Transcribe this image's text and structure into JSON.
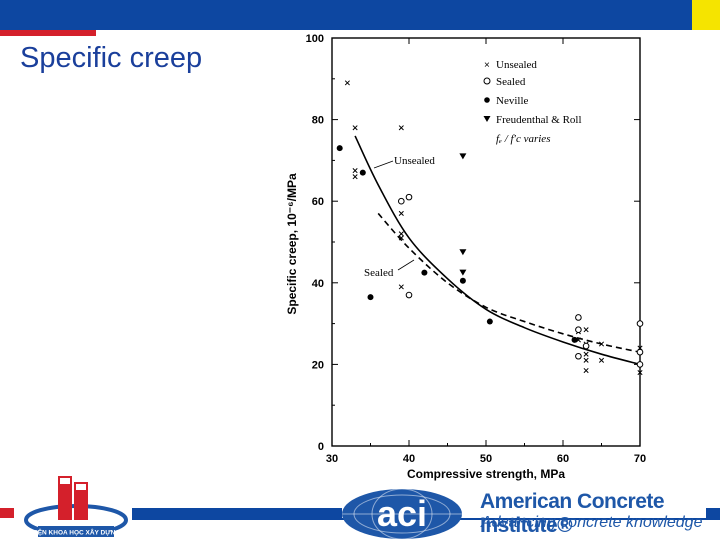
{
  "slide": {
    "title": "Specific creep"
  },
  "colors": {
    "primary_blue": "#0d47a1",
    "accent_red": "#d4202b",
    "accent_yellow": "#f5e400",
    "aci_blue": "#1e57a8"
  },
  "chart_data": {
    "type": "scatter",
    "title": "",
    "xlabel": "Compressive strength, MPa",
    "ylabel": "Specific creep, 10⁻⁶/MPa",
    "xlim": [
      30,
      70
    ],
    "ylim": [
      0,
      100
    ],
    "xticks": [
      "30",
      "40",
      "50",
      "60",
      "70"
    ],
    "yticks": [
      "0",
      "20",
      "40",
      "60",
      "80",
      "100"
    ],
    "legend": {
      "placement": "top-right",
      "entries": [
        "Unsealed",
        "Sealed",
        "Neville",
        "Freudenthal & Roll"
      ],
      "note": "fₑ / f′c varies"
    },
    "series": [
      {
        "name": "Unsealed",
        "marker": "x",
        "points": [
          [
            32,
            89
          ],
          [
            33,
            78
          ],
          [
            33,
            67.5
          ],
          [
            33,
            66
          ],
          [
            39,
            78
          ],
          [
            39,
            57
          ],
          [
            39,
            52
          ],
          [
            39,
            51
          ],
          [
            39,
            39
          ],
          [
            62,
            28
          ],
          [
            62,
            26
          ],
          [
            63,
            28.5
          ],
          [
            63,
            25
          ],
          [
            63,
            22.5
          ],
          [
            63,
            21
          ],
          [
            63,
            18.5
          ],
          [
            65,
            25
          ],
          [
            65,
            21
          ],
          [
            70,
            24
          ],
          [
            70,
            18
          ]
        ]
      },
      {
        "name": "Sealed",
        "marker": "o",
        "points": [
          [
            39,
            60
          ],
          [
            40,
            61
          ],
          [
            40,
            37
          ],
          [
            62,
            31.5
          ],
          [
            62,
            28.5
          ],
          [
            62,
            22
          ],
          [
            63,
            24.5
          ],
          [
            70,
            30
          ],
          [
            70,
            23
          ],
          [
            70,
            20
          ]
        ]
      },
      {
        "name": "Neville",
        "marker": "dot",
        "points": [
          [
            31,
            73
          ],
          [
            34,
            67
          ],
          [
            35,
            36.5
          ],
          [
            42,
            42.5
          ],
          [
            47,
            40.5
          ],
          [
            50.5,
            30.5
          ],
          [
            61.5,
            26
          ]
        ]
      },
      {
        "name": "Freudenthal & Roll",
        "marker": "triangle",
        "points": [
          [
            47,
            71
          ],
          [
            47,
            47.5
          ],
          [
            47,
            42.5
          ]
        ]
      }
    ],
    "curves": [
      {
        "name": "Unsealed",
        "style": "solid",
        "points": [
          [
            33,
            76
          ],
          [
            36,
            64
          ],
          [
            40,
            51
          ],
          [
            45,
            41
          ],
          [
            50,
            33.5
          ],
          [
            55,
            29
          ],
          [
            60,
            25.5
          ],
          [
            65,
            22.5
          ],
          [
            70,
            20
          ]
        ]
      },
      {
        "name": "Sealed",
        "style": "dashed",
        "points": [
          [
            36,
            57
          ],
          [
            40,
            48.5
          ],
          [
            45,
            40
          ],
          [
            50,
            34
          ],
          [
            55,
            30.5
          ],
          [
            60,
            27.5
          ],
          [
            65,
            25
          ],
          [
            70,
            23
          ]
        ]
      }
    ],
    "annotations": [
      "Unsealed",
      "Sealed"
    ]
  },
  "footer": {
    "left_logo_text": "VIỆN KHOA HỌC XÂY DỰNG",
    "aci_mark": "aci",
    "aci_name": "American Concrete Institute®",
    "aci_tagline": "Advancing concrete knowledge"
  }
}
